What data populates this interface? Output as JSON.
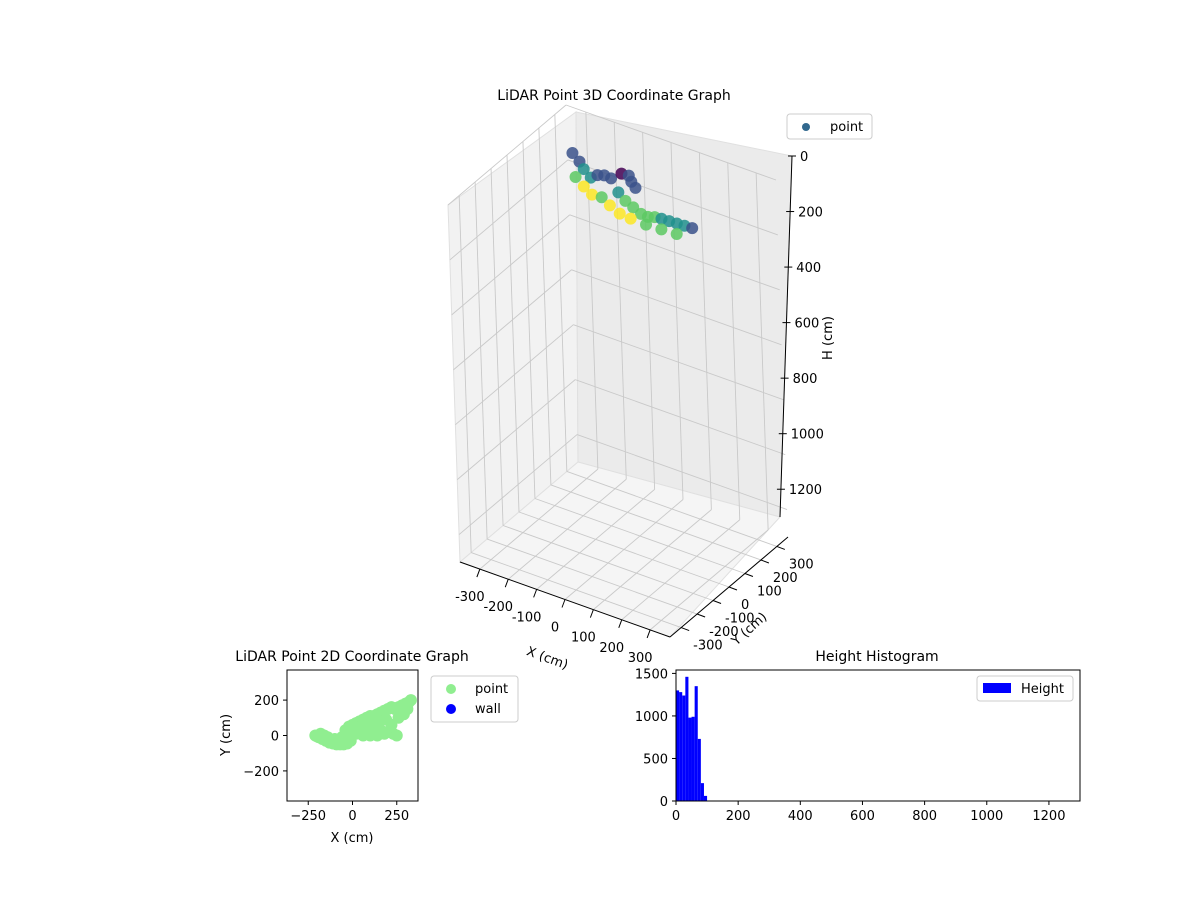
{
  "chart_data": [
    {
      "type": "scatter3d",
      "title": "LiDAR Point 3D Coordinate Graph",
      "xlabel": "X (cm)",
      "ylabel": "Y (cm)",
      "zlabel": "H (cm)",
      "x_ticks": [
        -300,
        -200,
        -100,
        0,
        100,
        200,
        300
      ],
      "y_ticks": [
        -300,
        -200,
        -100,
        0,
        100,
        200,
        300
      ],
      "z_ticks": [
        0,
        200,
        400,
        600,
        800,
        1000,
        1200
      ],
      "z_inverted": true,
      "grid": true,
      "legend": {
        "placement": "top-right",
        "entries": [
          "point"
        ]
      },
      "colormap": "viridis",
      "point_color": "#31688e",
      "points": [
        [
          -230,
          160,
          20
        ],
        [
          -200,
          150,
          35
        ],
        [
          -180,
          140,
          50
        ],
        [
          -150,
          130,
          65
        ],
        [
          -120,
          120,
          40
        ],
        [
          -90,
          110,
          25
        ],
        [
          -60,
          100,
          20
        ],
        [
          -30,
          90,
          55
        ],
        [
          0,
          80,
          70
        ],
        [
          30,
          75,
          80
        ],
        [
          60,
          70,
          90
        ],
        [
          90,
          60,
          85
        ],
        [
          120,
          50,
          70
        ],
        [
          150,
          40,
          60
        ],
        [
          180,
          35,
          55
        ],
        [
          210,
          30,
          50
        ],
        [
          240,
          25,
          45
        ],
        [
          270,
          20,
          40
        ],
        [
          -210,
          140,
          90
        ],
        [
          -170,
          120,
          100
        ],
        [
          -130,
          100,
          105
        ],
        [
          -90,
          90,
          95
        ],
        [
          -50,
          70,
          100
        ],
        [
          -10,
          60,
          110
        ],
        [
          40,
          40,
          100
        ],
        [
          100,
          30,
          95
        ],
        [
          160,
          20,
          85
        ],
        [
          220,
          10,
          75
        ],
        [
          -40,
          130,
          10
        ],
        [
          -20,
          140,
          15
        ],
        [
          0,
          120,
          20
        ],
        [
          20,
          110,
          30
        ]
      ]
    },
    {
      "type": "scatter",
      "title": "LiDAR Point 2D Coordinate Graph",
      "xlabel": "X (cm)",
      "ylabel": "Y (cm)",
      "xlim": [
        -370,
        370
      ],
      "ylim": [
        -370,
        370
      ],
      "x_ticks": [
        -250,
        0,
        250
      ],
      "y_ticks": [
        -200,
        0,
        200
      ],
      "legend": {
        "placement": "outside-right",
        "entries": [
          "point",
          "wall"
        ]
      },
      "series": [
        {
          "name": "point",
          "color": "#90ee90",
          "points": [
            [
              -210,
              0
            ],
            [
              -190,
              -10
            ],
            [
              -170,
              -20
            ],
            [
              -150,
              -30
            ],
            [
              -130,
              -40
            ],
            [
              -110,
              -45
            ],
            [
              -90,
              -50
            ],
            [
              -70,
              -50
            ],
            [
              -50,
              -50
            ],
            [
              -30,
              -45
            ],
            [
              -180,
              10
            ],
            [
              -140,
              -10
            ],
            [
              -100,
              -20
            ],
            [
              -60,
              -10
            ],
            [
              -20,
              0
            ],
            [
              -40,
              30
            ],
            [
              -20,
              50
            ],
            [
              0,
              60
            ],
            [
              20,
              70
            ],
            [
              40,
              80
            ],
            [
              60,
              90
            ],
            [
              80,
              100
            ],
            [
              100,
              110
            ],
            [
              120,
              110
            ],
            [
              140,
              120
            ],
            [
              160,
              130
            ],
            [
              180,
              140
            ],
            [
              200,
              150
            ],
            [
              220,
              160
            ],
            [
              240,
              150
            ],
            [
              260,
              160
            ],
            [
              280,
              170
            ],
            [
              300,
              180
            ],
            [
              320,
              190
            ],
            [
              0,
              20
            ],
            [
              40,
              30
            ],
            [
              80,
              40
            ],
            [
              120,
              40
            ],
            [
              160,
              30
            ],
            [
              200,
              20
            ],
            [
              230,
              10
            ],
            [
              250,
              0
            ],
            [
              220,
              60
            ],
            [
              260,
              100
            ],
            [
              290,
              120
            ],
            [
              310,
              150
            ],
            [
              60,
              0
            ],
            [
              100,
              0
            ],
            [
              140,
              0
            ],
            [
              180,
              10
            ],
            [
              -10,
              -30
            ],
            [
              20,
              10
            ],
            [
              50,
              50
            ],
            [
              110,
              70
            ],
            [
              150,
              80
            ],
            [
              190,
              90
            ],
            [
              270,
              130
            ],
            [
              330,
              200
            ],
            [
              -200,
              -5
            ],
            [
              -160,
              0
            ]
          ]
        },
        {
          "name": "wall",
          "color": "#0000ff",
          "points": []
        }
      ]
    },
    {
      "type": "bar",
      "title": "Height Histogram",
      "xlabel": "",
      "ylabel": "",
      "xlim": [
        0,
        1300
      ],
      "ylim": [
        0,
        1540
      ],
      "x_ticks": [
        0,
        200,
        400,
        600,
        800,
        1000,
        1200
      ],
      "y_ticks": [
        0,
        500,
        1000,
        1500
      ],
      "bar_color": "#0000ff",
      "legend": {
        "placement": "top-right",
        "entries": [
          "Height"
        ]
      },
      "bins": [
        {
          "x0": 0,
          "x1": 10,
          "count": 1300
        },
        {
          "x0": 10,
          "x1": 20,
          "count": 1280
        },
        {
          "x0": 20,
          "x1": 30,
          "count": 1240
        },
        {
          "x0": 30,
          "x1": 40,
          "count": 1460
        },
        {
          "x0": 40,
          "x1": 50,
          "count": 980
        },
        {
          "x0": 50,
          "x1": 60,
          "count": 990
        },
        {
          "x0": 60,
          "x1": 70,
          "count": 1350
        },
        {
          "x0": 70,
          "x1": 80,
          "count": 730
        },
        {
          "x0": 80,
          "x1": 90,
          "count": 210
        },
        {
          "x0": 90,
          "x1": 100,
          "count": 60
        }
      ]
    }
  ]
}
